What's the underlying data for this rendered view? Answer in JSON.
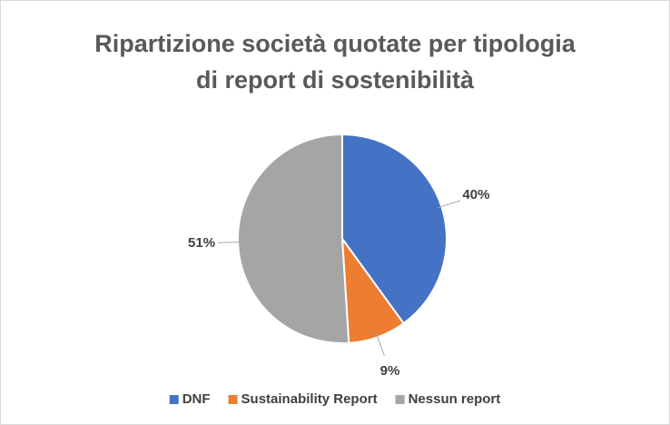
{
  "chart_data": {
    "type": "pie",
    "title": "Ripartizione società quotate per tipologia di report di sostenibilità",
    "categories": [
      "DNF",
      "Sustainability Report",
      "Nessun report"
    ],
    "values": [
      40,
      9,
      51
    ],
    "value_labels": [
      "40%",
      "9%",
      "51%"
    ],
    "colors": [
      "#4472c4",
      "#ed7d31",
      "#a5a5a5"
    ],
    "legend": "bottom"
  }
}
